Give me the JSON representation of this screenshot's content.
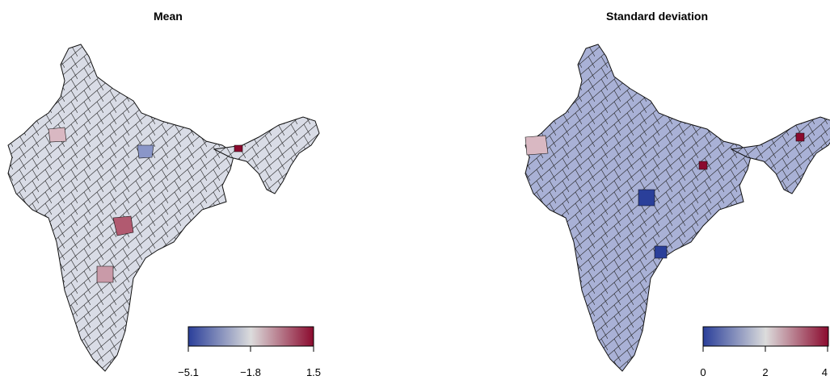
{
  "panels": [
    {
      "title": "Mean",
      "legend": {
        "ticks": [
          "−5.1",
          "−1.8",
          "1.5"
        ],
        "colors": [
          "#2a3f9a",
          "#dcdcdc",
          "#8b0a2e"
        ]
      }
    },
    {
      "title": "Standard deviation",
      "legend": {
        "ticks": [
          "0",
          "2",
          "4"
        ],
        "colors": [
          "#2a3f9a",
          "#dcdcdc",
          "#8b0a2e"
        ]
      }
    }
  ]
}
